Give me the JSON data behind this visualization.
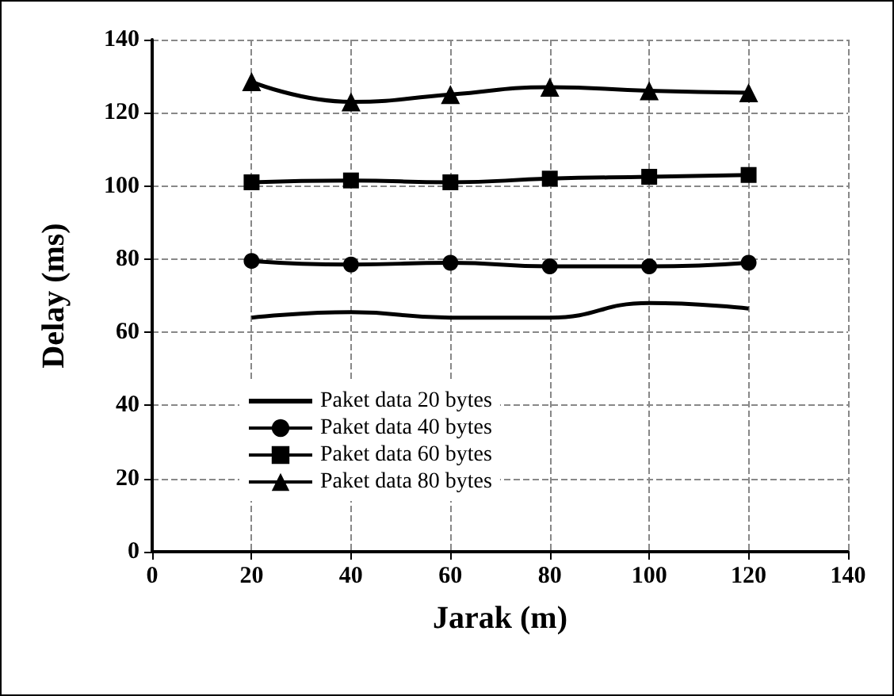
{
  "chart_data": {
    "type": "line",
    "xlabel": "Jarak (m)",
    "ylabel": "Delay (ms)",
    "x": [
      20,
      40,
      60,
      80,
      100,
      120
    ],
    "series": [
      {
        "name": "Paket data 20 bytes",
        "color": "#000000",
        "marker": "none",
        "values": [
          64,
          65.5,
          64,
          64,
          68,
          66.5
        ]
      },
      {
        "name": "Paket data 40 bytes",
        "color": "#000000",
        "marker": "circle",
        "values": [
          79.5,
          78.5,
          79,
          78,
          78,
          79
        ]
      },
      {
        "name": "Paket data 60 bytes",
        "color": "#000000",
        "marker": "square",
        "values": [
          101,
          101.5,
          101,
          102,
          102.5,
          103
        ]
      },
      {
        "name": "Paket data 80 bytes",
        "color": "#000000",
        "marker": "triangle",
        "values": [
          128.5,
          123,
          125,
          127,
          126,
          125.5
        ]
      }
    ],
    "xlim": [
      0,
      140
    ],
    "xticks": [
      0,
      20,
      40,
      60,
      80,
      100,
      120,
      140
    ],
    "ylim": [
      0,
      140
    ],
    "yticks": [
      0,
      20,
      40,
      60,
      80,
      100,
      120,
      140
    ],
    "grid": true,
    "legend": "bottom left"
  }
}
